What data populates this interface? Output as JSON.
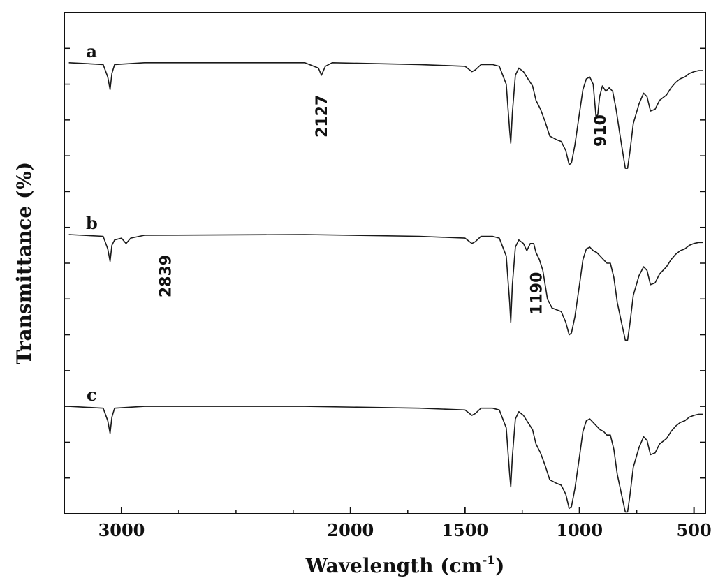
{
  "chart_data": {
    "type": "line",
    "title": "",
    "xlabel_main": "Wavelength (cm",
    "xlabel_sup": "-1",
    "xlabel_end": ")",
    "ylabel": "Transmittance (%)",
    "xlim": [
      3250,
      450
    ],
    "x_reversed": true,
    "x_ticks": [
      3000,
      2000,
      1500,
      1000,
      500
    ],
    "x_tick_labels": [
      "3000",
      "2000",
      "1500",
      "1000",
      "500"
    ],
    "y_ticks_unlabeled": true,
    "ylim": [
      0,
      14
    ],
    "series": [
      {
        "name": "a",
        "offset": 9.6,
        "points": [
          [
            3230,
            3.0
          ],
          [
            3080,
            2.95
          ],
          [
            3060,
            2.6
          ],
          [
            3050,
            2.25
          ],
          [
            3042,
            2.7
          ],
          [
            3030,
            2.95
          ],
          [
            2900,
            3.0
          ],
          [
            2200,
            3.0
          ],
          [
            2140,
            2.85
          ],
          [
            2127,
            2.65
          ],
          [
            2110,
            2.9
          ],
          [
            2080,
            3.0
          ],
          [
            1700,
            2.95
          ],
          [
            1500,
            2.9
          ],
          [
            1470,
            2.75
          ],
          [
            1455,
            2.8
          ],
          [
            1430,
            2.95
          ],
          [
            1380,
            2.95
          ],
          [
            1350,
            2.9
          ],
          [
            1320,
            2.4
          ],
          [
            1305,
            1.1
          ],
          [
            1300,
            0.75
          ],
          [
            1293,
            1.6
          ],
          [
            1280,
            2.65
          ],
          [
            1265,
            2.85
          ],
          [
            1245,
            2.75
          ],
          [
            1225,
            2.55
          ],
          [
            1205,
            2.35
          ],
          [
            1190,
            1.95
          ],
          [
            1170,
            1.7
          ],
          [
            1150,
            1.35
          ],
          [
            1130,
            0.95
          ],
          [
            1100,
            0.85
          ],
          [
            1080,
            0.8
          ],
          [
            1060,
            0.55
          ],
          [
            1045,
            0.15
          ],
          [
            1035,
            0.2
          ],
          [
            1020,
            0.7
          ],
          [
            1000,
            1.6
          ],
          [
            985,
            2.25
          ],
          [
            970,
            2.55
          ],
          [
            955,
            2.6
          ],
          [
            940,
            2.4
          ],
          [
            928,
            1.5
          ],
          [
            920,
            1.55
          ],
          [
            912,
            2.05
          ],
          [
            900,
            2.35
          ],
          [
            885,
            2.2
          ],
          [
            870,
            2.3
          ],
          [
            855,
            2.2
          ],
          [
            840,
            1.7
          ],
          [
            825,
            1.05
          ],
          [
            810,
            0.45
          ],
          [
            800,
            0.05
          ],
          [
            790,
            0.05
          ],
          [
            780,
            0.5
          ],
          [
            765,
            1.3
          ],
          [
            740,
            1.85
          ],
          [
            720,
            2.15
          ],
          [
            705,
            2.05
          ],
          [
            690,
            1.65
          ],
          [
            670,
            1.7
          ],
          [
            650,
            1.95
          ],
          [
            620,
            2.1
          ],
          [
            600,
            2.3
          ],
          [
            580,
            2.45
          ],
          [
            560,
            2.55
          ],
          [
            540,
            2.6
          ],
          [
            520,
            2.7
          ],
          [
            500,
            2.75
          ],
          [
            480,
            2.78
          ],
          [
            460,
            2.78
          ]
        ]
      },
      {
        "name": "b",
        "offset": 4.8,
        "points": [
          [
            3230,
            3.0
          ],
          [
            3080,
            2.95
          ],
          [
            3060,
            2.6
          ],
          [
            3050,
            2.25
          ],
          [
            3042,
            2.7
          ],
          [
            3030,
            2.85
          ],
          [
            3000,
            2.9
          ],
          [
            2980,
            2.75
          ],
          [
            2960,
            2.9
          ],
          [
            2900,
            2.98
          ],
          [
            2200,
            3.0
          ],
          [
            1700,
            2.95
          ],
          [
            1500,
            2.9
          ],
          [
            1470,
            2.75
          ],
          [
            1455,
            2.8
          ],
          [
            1430,
            2.95
          ],
          [
            1380,
            2.95
          ],
          [
            1350,
            2.9
          ],
          [
            1320,
            2.4
          ],
          [
            1305,
            1.1
          ],
          [
            1300,
            0.55
          ],
          [
            1293,
            1.6
          ],
          [
            1280,
            2.65
          ],
          [
            1265,
            2.85
          ],
          [
            1245,
            2.75
          ],
          [
            1230,
            2.55
          ],
          [
            1215,
            2.75
          ],
          [
            1200,
            2.75
          ],
          [
            1190,
            2.5
          ],
          [
            1175,
            2.3
          ],
          [
            1160,
            2.0
          ],
          [
            1140,
            1.2
          ],
          [
            1120,
            0.95
          ],
          [
            1100,
            0.9
          ],
          [
            1080,
            0.85
          ],
          [
            1060,
            0.55
          ],
          [
            1045,
            0.2
          ],
          [
            1035,
            0.25
          ],
          [
            1020,
            0.7
          ],
          [
            1000,
            1.6
          ],
          [
            985,
            2.3
          ],
          [
            970,
            2.6
          ],
          [
            955,
            2.65
          ],
          [
            940,
            2.55
          ],
          [
            925,
            2.5
          ],
          [
            910,
            2.4
          ],
          [
            895,
            2.3
          ],
          [
            880,
            2.2
          ],
          [
            865,
            2.2
          ],
          [
            850,
            1.8
          ],
          [
            835,
            1.1
          ],
          [
            815,
            0.5
          ],
          [
            800,
            0.05
          ],
          [
            790,
            0.05
          ],
          [
            780,
            0.5
          ],
          [
            765,
            1.3
          ],
          [
            740,
            1.85
          ],
          [
            720,
            2.1
          ],
          [
            705,
            2.0
          ],
          [
            690,
            1.6
          ],
          [
            670,
            1.65
          ],
          [
            650,
            1.9
          ],
          [
            620,
            2.1
          ],
          [
            600,
            2.3
          ],
          [
            580,
            2.45
          ],
          [
            560,
            2.55
          ],
          [
            540,
            2.6
          ],
          [
            520,
            2.7
          ],
          [
            500,
            2.75
          ],
          [
            480,
            2.78
          ],
          [
            460,
            2.78
          ]
        ]
      },
      {
        "name": "c",
        "offset": 0.0,
        "points": [
          [
            3230,
            3.0
          ],
          [
            3080,
            2.95
          ],
          [
            3060,
            2.6
          ],
          [
            3050,
            2.25
          ],
          [
            3042,
            2.7
          ],
          [
            3030,
            2.95
          ],
          [
            2900,
            3.0
          ],
          [
            2200,
            3.0
          ],
          [
            1700,
            2.95
          ],
          [
            1500,
            2.9
          ],
          [
            1470,
            2.75
          ],
          [
            1455,
            2.8
          ],
          [
            1430,
            2.95
          ],
          [
            1380,
            2.95
          ],
          [
            1350,
            2.9
          ],
          [
            1320,
            2.4
          ],
          [
            1305,
            1.1
          ],
          [
            1300,
            0.75
          ],
          [
            1293,
            1.6
          ],
          [
            1280,
            2.65
          ],
          [
            1265,
            2.85
          ],
          [
            1245,
            2.75
          ],
          [
            1225,
            2.55
          ],
          [
            1205,
            2.35
          ],
          [
            1190,
            1.95
          ],
          [
            1170,
            1.7
          ],
          [
            1150,
            1.35
          ],
          [
            1130,
            0.95
          ],
          [
            1100,
            0.85
          ],
          [
            1080,
            0.8
          ],
          [
            1060,
            0.55
          ],
          [
            1045,
            0.15
          ],
          [
            1035,
            0.2
          ],
          [
            1020,
            0.7
          ],
          [
            1000,
            1.6
          ],
          [
            985,
            2.3
          ],
          [
            970,
            2.6
          ],
          [
            955,
            2.65
          ],
          [
            940,
            2.55
          ],
          [
            925,
            2.45
          ],
          [
            910,
            2.35
          ],
          [
            895,
            2.3
          ],
          [
            880,
            2.2
          ],
          [
            865,
            2.2
          ],
          [
            850,
            1.8
          ],
          [
            835,
            1.1
          ],
          [
            815,
            0.5
          ],
          [
            800,
            0.05
          ],
          [
            790,
            0.05
          ],
          [
            780,
            0.5
          ],
          [
            765,
            1.3
          ],
          [
            740,
            1.85
          ],
          [
            720,
            2.15
          ],
          [
            705,
            2.05
          ],
          [
            690,
            1.65
          ],
          [
            670,
            1.7
          ],
          [
            650,
            1.95
          ],
          [
            620,
            2.1
          ],
          [
            600,
            2.3
          ],
          [
            580,
            2.45
          ],
          [
            560,
            2.55
          ],
          [
            540,
            2.6
          ],
          [
            520,
            2.7
          ],
          [
            500,
            2.75
          ],
          [
            480,
            2.78
          ],
          [
            460,
            2.78
          ]
        ]
      }
    ],
    "annotations": [
      {
        "text": "2127",
        "series": "a",
        "x": 2127
      },
      {
        "text": "910",
        "series": "a",
        "x": 910
      },
      {
        "text": "2839",
        "series": "b",
        "x": 2839
      },
      {
        "text": "1190",
        "series": "b",
        "x": 1190
      }
    ],
    "grid": false,
    "line_color": "#1a1a1a"
  }
}
